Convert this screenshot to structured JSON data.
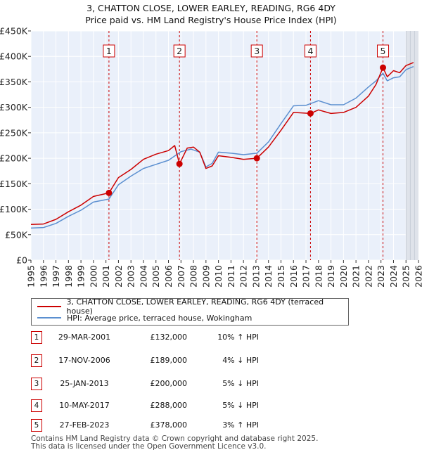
{
  "chart_data": {
    "type": "line",
    "title": "3, CHATTON CLOSE, LOWER EARLEY, READING, RG6 4DY",
    "subtitle": "Price paid vs. HM Land Registry's House Price Index (HPI)",
    "xlabel": "",
    "ylabel": "",
    "xlim": [
      1995,
      2026
    ],
    "ylim": [
      0,
      450000
    ],
    "y_ticks": [
      0,
      50000,
      100000,
      150000,
      200000,
      250000,
      300000,
      350000,
      400000,
      450000
    ],
    "y_tick_labels": [
      "£0",
      "£50K",
      "£100K",
      "£150K",
      "£200K",
      "£250K",
      "£300K",
      "£350K",
      "£400K",
      "£450K"
    ],
    "x_ticks": [
      1995,
      1996,
      1997,
      1998,
      1999,
      2000,
      2001,
      2002,
      2003,
      2004,
      2005,
      2006,
      2007,
      2008,
      2009,
      2010,
      2011,
      2012,
      2013,
      2014,
      2015,
      2016,
      2017,
      2018,
      2019,
      2020,
      2021,
      2022,
      2023,
      2024,
      2025,
      2026
    ],
    "x_tick_labels": [
      "1995",
      "1996",
      "1997",
      "1998",
      "1999",
      "2000",
      "2001",
      "2002",
      "2003",
      "2004",
      "2005",
      "2006",
      "2007",
      "2008",
      "2009",
      "2010",
      "2011",
      "2012",
      "2013",
      "2014",
      "2015",
      "2016",
      "2017",
      "2018",
      "2019",
      "2020",
      "2021",
      "2022",
      "2023",
      "2024",
      "2025",
      "2026"
    ],
    "grid": true,
    "future_shading_from": 2025.0,
    "series": [
      {
        "name": "3, CHATTON CLOSE, LOWER EARLEY, READING, RG6 4DY (terraced house)",
        "color": "#cc0000",
        "x": [
          1995.0,
          1996.0,
          1997.0,
          1998.0,
          1999.0,
          2000.0,
          2001.24,
          2002.0,
          2003.0,
          2004.0,
          2005.0,
          2006.0,
          2006.5,
          2006.88,
          2007.5,
          2008.0,
          2008.5,
          2009.0,
          2009.5,
          2010.0,
          2011.0,
          2012.0,
          2013.07,
          2014.0,
          2015.0,
          2016.0,
          2017.36,
          2018.0,
          2019.0,
          2020.0,
          2021.0,
          2022.0,
          2022.6,
          2023.16,
          2023.5,
          2024.0,
          2024.5,
          2025.0,
          2025.6
        ],
        "values": [
          70000,
          71000,
          80000,
          95000,
          108000,
          125000,
          132000,
          162000,
          178000,
          198000,
          208000,
          215000,
          225000,
          189000,
          220000,
          222000,
          212000,
          180000,
          185000,
          205000,
          202000,
          198000,
          200000,
          222000,
          255000,
          290000,
          288000,
          295000,
          288000,
          290000,
          300000,
          322000,
          345000,
          378000,
          360000,
          372000,
          368000,
          382000,
          388000
        ]
      },
      {
        "name": "HPI: Average price, terraced house, Wokingham",
        "color": "#5b8fd0",
        "x": [
          1995.0,
          1996.0,
          1997.0,
          1998.0,
          1999.0,
          2000.0,
          2001.24,
          2002.0,
          2003.0,
          2004.0,
          2005.0,
          2006.0,
          2007.0,
          2007.8,
          2008.5,
          2009.0,
          2009.5,
          2010.0,
          2011.0,
          2012.0,
          2013.07,
          2014.0,
          2015.0,
          2016.0,
          2017.0,
          2018.0,
          2019.0,
          2020.0,
          2021.0,
          2022.0,
          2022.6,
          2023.16,
          2023.5,
          2024.0,
          2024.5,
          2025.0,
          2025.6
        ],
        "values": [
          63000,
          64000,
          72000,
          86000,
          98000,
          114000,
          120000,
          148000,
          165000,
          180000,
          188000,
          196000,
          213000,
          218000,
          212000,
          183000,
          190000,
          212000,
          210000,
          207000,
          210000,
          232000,
          268000,
          303000,
          304000,
          313000,
          305000,
          305000,
          318000,
          340000,
          352000,
          367000,
          352000,
          358000,
          360000,
          374000,
          380000
        ]
      }
    ],
    "sales": [
      {
        "label": "1",
        "x": 2001.24,
        "value": 132000
      },
      {
        "label": "2",
        "x": 2006.88,
        "value": 189000
      },
      {
        "label": "3",
        "x": 2013.07,
        "value": 200000
      },
      {
        "label": "4",
        "x": 2017.36,
        "value": 288000
      },
      {
        "label": "5",
        "x": 2023.16,
        "value": 378000
      }
    ]
  },
  "title_line1": "3, CHATTON CLOSE, LOWER EARLEY, READING, RG6 4DY",
  "title_line2": "Price paid vs. HM Land Registry's House Price Index (HPI)",
  "legend": {
    "property_label": "3, CHATTON CLOSE, LOWER EARLEY, READING, RG6 4DY (terraced house)",
    "hpi_label": "HPI: Average price, terraced house, Wokingham",
    "property_color": "#cc0000",
    "hpi_color": "#5b8fd0"
  },
  "sales_table": [
    {
      "num": "1",
      "date": "29-MAR-2001",
      "price": "£132,000",
      "hpi": "10% ↑ HPI"
    },
    {
      "num": "2",
      "date": "17-NOV-2006",
      "price": "£189,000",
      "hpi": "4% ↓ HPI"
    },
    {
      "num": "3",
      "date": "25-JAN-2013",
      "price": "£200,000",
      "hpi": "5% ↓ HPI"
    },
    {
      "num": "4",
      "date": "10-MAY-2017",
      "price": "£288,000",
      "hpi": "5% ↓ HPI"
    },
    {
      "num": "5",
      "date": "27-FEB-2023",
      "price": "£378,000",
      "hpi": "3% ↑ HPI"
    }
  ],
  "footer": {
    "line1": "Contains HM Land Registry data © Crown copyright and database right 2025.",
    "line2": "This data is licensed under the Open Government Licence v3.0."
  }
}
